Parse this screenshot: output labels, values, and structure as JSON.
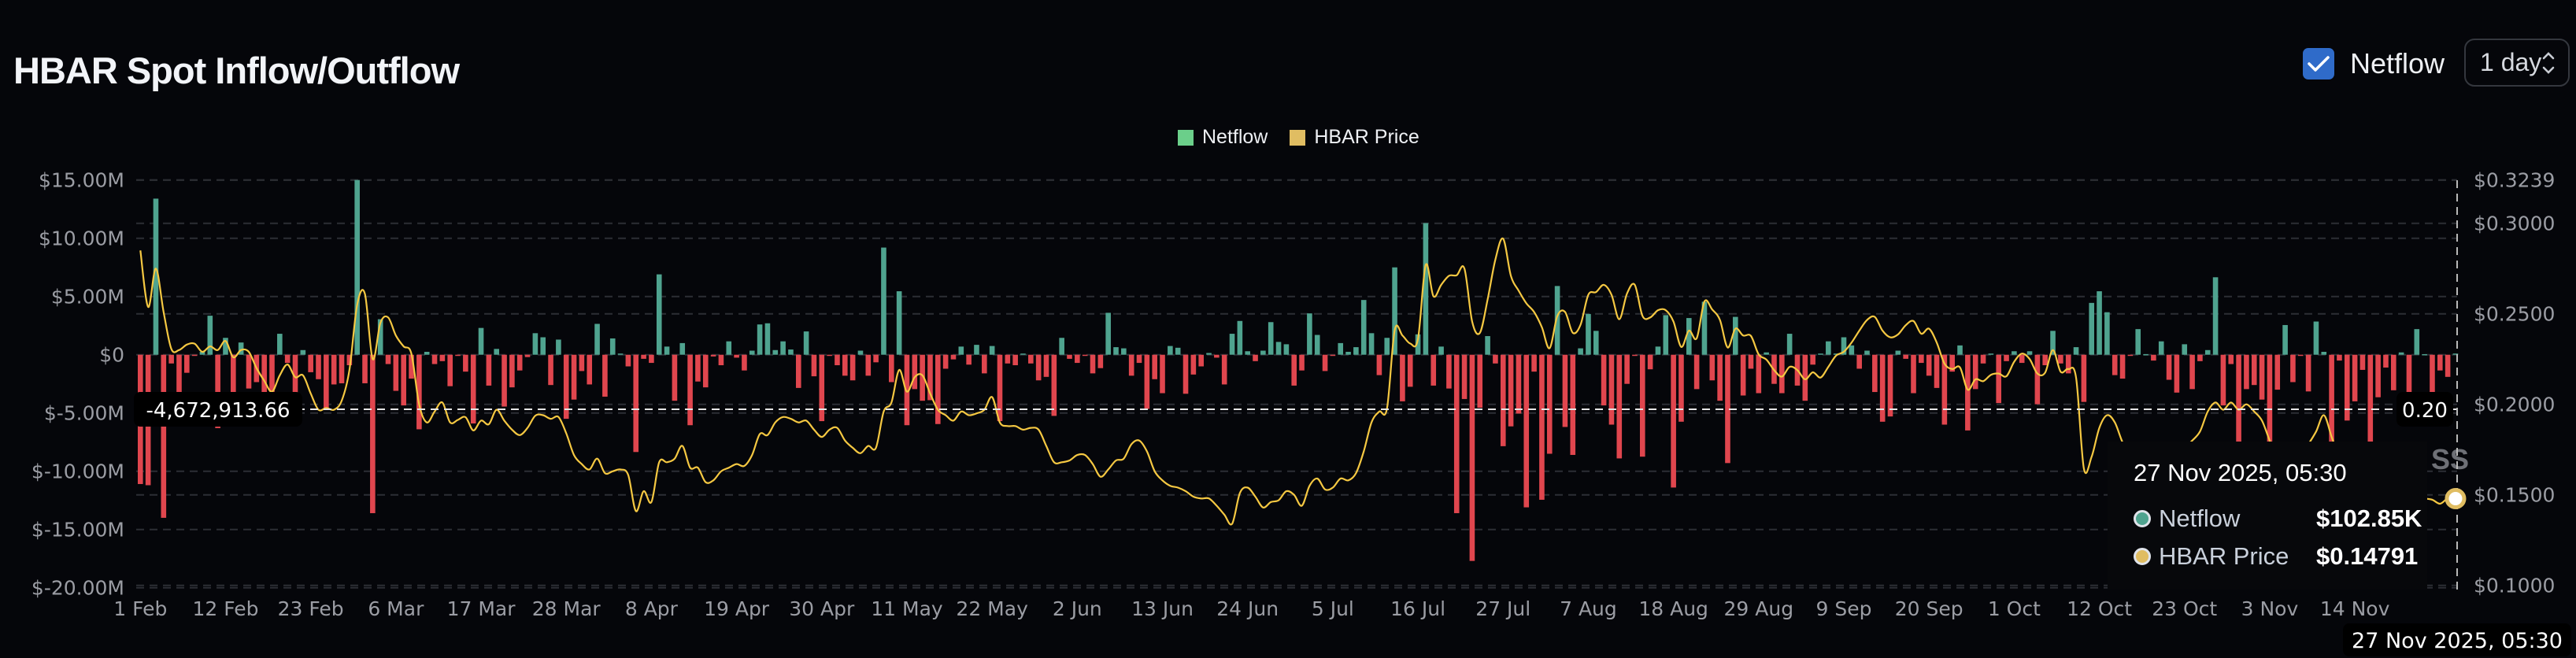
{
  "header": {
    "title": "HBAR Spot Inflow/Outflow",
    "toggle_label": "Netflow",
    "toggle_checked": true,
    "interval_value": "1 day",
    "checkbox_color": "#2f6bc9"
  },
  "legend": [
    {
      "label": "Netflow",
      "color": "#6bcf8a"
    },
    {
      "label": "HBAR Price",
      "color": "#e0bd62"
    }
  ],
  "crosshair": {
    "left_label": "-4,672,913.66",
    "right_label": "0.20",
    "bottom_label": "27 Nov 2025, 05:30"
  },
  "tooltip": {
    "date": "27 Nov 2025, 05:30",
    "rows": [
      {
        "label": "Netflow",
        "value": "$102.85K",
        "color": "#4fa38f"
      },
      {
        "label": "HBAR Price",
        "value": "$0.14791",
        "color": "#e0bd62"
      }
    ]
  },
  "watermark_fragment": "SS",
  "chart_data": {
    "type": "bar+line",
    "x_start": "2025-02-01",
    "x_end": "2025-11-27",
    "x_ticks": [
      "1 Feb",
      "12 Feb",
      "23 Feb",
      "6 Mar",
      "17 Mar",
      "28 Mar",
      "8 Apr",
      "19 Apr",
      "30 Apr",
      "11 May",
      "22 May",
      "2 Jun",
      "13 Jun",
      "24 Jun",
      "5 Jul",
      "16 Jul",
      "27 Jul",
      "7 Aug",
      "18 Aug",
      "29 Aug",
      "9 Sep",
      "20 Sep",
      "1 Oct",
      "12 Oct",
      "23 Oct",
      "3 Nov",
      "14 Nov"
    ],
    "y_left": {
      "unit": "USD millions",
      "range": [
        -20,
        15
      ],
      "ticks": [
        15,
        10,
        5,
        0,
        -5,
        -10,
        -15,
        -20
      ],
      "tick_labels": [
        "$15.00M",
        "$10.00M",
        "$5.00M",
        "$0",
        "$-5.00M",
        "$-10.00M",
        "$-15.00M",
        "$-20.00M"
      ]
    },
    "y_right": {
      "unit": "USD",
      "range": [
        0.1,
        0.3239
      ],
      "ticks": [
        0.3239,
        0.3,
        0.25,
        0.2,
        0.15,
        0.1
      ],
      "tick_labels": [
        "$0.3239",
        "$0.3000",
        "$0.2500",
        "$0.2000",
        "$0.1500",
        "$0.1000"
      ]
    },
    "grid": true,
    "legend_position": "top-center",
    "colors": {
      "positive": "#4fa38f",
      "negative": "#e0464e",
      "price": "#f5c842"
    },
    "series": [
      {
        "name": "Netflow",
        "type": "bar",
        "axis": "left",
        "values": [
          -11.1,
          -11.2,
          13.4,
          -14.0,
          -0.75,
          -4.1,
          -1.55,
          -0.1,
          0.25,
          3.35,
          -6.3,
          1.45,
          -4.25,
          1.05,
          -2.9,
          -2.35,
          -5.25,
          -5.4,
          1.8,
          -0.7,
          -4.7,
          0.4,
          -1.5,
          -2.1,
          -4.6,
          -2.55,
          -2.45,
          -0.9,
          15.0,
          -2.45,
          -13.6,
          3.05,
          -0.8,
          -3.1,
          -4.35,
          -2.05,
          -6.4,
          0.25,
          -0.8,
          -0.55,
          -2.7,
          -0.1,
          -1.45,
          -5.9,
          2.3,
          -2.65,
          0.5,
          -4.45,
          -2.8,
          -1.35,
          -0.2,
          1.85,
          1.5,
          -2.6,
          1.3,
          -5.5,
          -3.85,
          -1.4,
          -2.55,
          2.65,
          -3.6,
          1.4,
          0.1,
          -1.0,
          -8.35,
          -0.35,
          -0.7,
          6.9,
          0.7,
          -3.95,
          1.0,
          -6.05,
          -2.3,
          -2.8,
          -0.15,
          -0.9,
          1.15,
          -0.25,
          -1.35,
          0.35,
          2.6,
          2.7,
          0.4,
          1.15,
          0.45,
          -2.85,
          2.0,
          -1.85,
          -5.7,
          -0.05,
          -0.9,
          -1.8,
          -2.2,
          0.35,
          -1.8,
          -0.65,
          9.2,
          -2.35,
          5.45,
          -6.05,
          -2.95,
          -3.95,
          -3.9,
          -5.95,
          -1.2,
          -0.4,
          0.7,
          -0.85,
          0.85,
          -1.6,
          0.75,
          -5.7,
          -0.75,
          -0.9,
          0.1,
          -0.75,
          -2.2,
          -1.9,
          -5.25,
          1.45,
          -0.35,
          -0.7,
          -0.05,
          -1.6,
          -1.15,
          3.6,
          0.65,
          0.55,
          -1.8,
          -0.7,
          -4.65,
          -2.1,
          -3.3,
          0.75,
          0.6,
          -3.35,
          -1.7,
          -1.0,
          0.15,
          -0.25,
          -2.55,
          1.8,
          2.9,
          0.3,
          -0.55,
          0.35,
          2.8,
          1.1,
          0.9,
          -2.65,
          -1.35,
          3.55,
          1.7,
          -1.4,
          -0.05,
          1.0,
          0.25,
          0.65,
          4.7,
          1.85,
          -1.75,
          1.45,
          7.5,
          -4.0,
          -2.75,
          1.75,
          11.3,
          -2.65,
          0.7,
          -2.9,
          -13.6,
          -3.8,
          -17.7,
          -4.55,
          1.6,
          -0.75,
          -7.85,
          -6.15,
          -5.05,
          -13.1,
          -1.45,
          -12.45,
          -8.5,
          5.9,
          -6.2,
          -8.6,
          0.55,
          3.5,
          2.05,
          -4.35,
          -6.0,
          -8.9,
          -2.5,
          -0.1,
          -8.75,
          -1.25,
          0.7,
          3.4,
          -11.4,
          -5.75,
          3.15,
          -2.95,
          4.55,
          -2.2,
          -3.95,
          -9.3,
          3.25,
          -3.5,
          -1.2,
          -3.3,
          0.2,
          -2.5,
          -3.3,
          1.8,
          -2.65,
          -3.95,
          -0.85,
          0.1,
          1.15,
          0.1,
          1.5,
          0.8,
          -1.2,
          0.35,
          -3.2,
          -5.75,
          -5.3,
          0.35,
          -0.35,
          -3.3,
          -0.7,
          -1.8,
          -2.85,
          -6.0,
          -1.45,
          0.8,
          -6.5,
          -2.95,
          -0.75,
          0.1,
          -4.15,
          -0.55,
          0.3,
          -0.7,
          0.3,
          -4.25,
          -0.9,
          2.05,
          -0.75,
          -1.6,
          0.65,
          -4.05,
          4.45,
          5.45,
          3.65,
          -1.75,
          -2.05,
          -0.05,
          2.2,
          0.05,
          -0.5,
          1.15,
          -2.15,
          -3.25,
          0.9,
          -2.95,
          -0.55,
          0.4,
          6.65,
          -4.35,
          -0.8,
          -9.0,
          -2.95,
          -2.6,
          -3.85,
          -8.0,
          -3.0,
          2.55,
          -2.35,
          -0.05,
          -3.15,
          2.85,
          0.25,
          -9.5,
          -0.5,
          -5.65,
          -4.0,
          -1.3,
          -8.5,
          -3.65,
          -1.1,
          -3.05,
          0.2,
          -3.55,
          2.2,
          0.05,
          -4.95,
          -1.35,
          -1.9,
          0.10285
        ]
      },
      {
        "name": "HBAR Price",
        "type": "line",
        "axis": "right",
        "values": [
          0.285,
          0.2538,
          0.275,
          0.251,
          0.2306,
          0.23,
          0.233,
          0.2335,
          0.229,
          0.232,
          0.23,
          0.235,
          0.226,
          0.23,
          0.229,
          0.22,
          0.213,
          0.207,
          0.216,
          0.222,
          0.215,
          0.216,
          0.206,
          0.197,
          0.198,
          0.197,
          0.202,
          0.219,
          0.255,
          0.261,
          0.225,
          0.245,
          0.248,
          0.238,
          0.232,
          0.228,
          0.2,
          0.19,
          0.196,
          0.201,
          0.19,
          0.1914,
          0.1929,
          0.1856,
          0.191,
          0.189,
          0.197,
          0.191,
          0.186,
          0.183,
          0.187,
          0.1937,
          0.194,
          0.192,
          0.193,
          0.184,
          0.172,
          0.167,
          0.164,
          0.17,
          0.162,
          0.163,
          0.164,
          0.161,
          0.141,
          0.152,
          0.146,
          0.168,
          0.168,
          0.17,
          0.177,
          0.165,
          0.165,
          0.157,
          0.158,
          0.163,
          0.165,
          0.167,
          0.166,
          0.172,
          0.1836,
          0.183,
          0.19,
          0.193,
          0.192,
          0.19,
          0.191,
          0.186,
          0.182,
          0.186,
          0.187,
          0.18,
          0.176,
          0.173,
          0.177,
          0.176,
          0.196,
          0.201,
          0.219,
          0.207,
          0.215,
          0.216,
          0.206,
          0.197,
          0.194,
          0.191,
          0.196,
          0.194,
          0.195,
          0.197,
          0.204,
          0.19,
          0.188,
          0.188,
          0.186,
          0.187,
          0.186,
          0.177,
          0.168,
          0.168,
          0.169,
          0.172,
          0.172,
          0.167,
          0.16,
          0.164,
          0.169,
          0.17,
          0.178,
          0.18,
          0.174,
          0.163,
          0.158,
          0.155,
          0.154,
          0.152,
          0.149,
          0.148,
          0.148,
          0.144,
          0.139,
          0.134,
          0.151,
          0.154,
          0.149,
          0.143,
          0.146,
          0.147,
          0.152,
          0.15,
          0.144,
          0.155,
          0.159,
          0.153,
          0.154,
          0.159,
          0.158,
          0.162,
          0.174,
          0.19,
          0.196,
          0.1977,
          0.241,
          0.238,
          0.2336,
          0.236,
          0.277,
          0.2597,
          0.266,
          0.271,
          0.2713,
          0.275,
          0.2457,
          0.2395,
          0.258,
          0.28,
          0.2915,
          0.271,
          0.2628,
          0.2558,
          0.251,
          0.2426,
          0.231,
          0.2488,
          0.251,
          0.2395,
          0.244,
          0.2605,
          0.262,
          0.266,
          0.2605,
          0.247,
          0.2612,
          0.266,
          0.2488,
          0.248,
          0.252,
          0.252,
          0.2457,
          0.2317,
          0.2407,
          0.2365,
          0.2568,
          0.2524,
          0.2466,
          0.2314,
          0.2418,
          0.238,
          0.2378,
          0.2276,
          0.2247,
          0.2189,
          0.2153,
          0.2207,
          0.2189,
          0.2138,
          0.2177,
          0.2148,
          0.2207,
          0.2269,
          0.229,
          0.2341,
          0.2407,
          0.2466,
          0.2483,
          0.2407,
          0.237,
          0.2386,
          0.2437,
          0.246,
          0.239,
          0.2418,
          0.2341,
          0.2225,
          0.2195,
          0.2204,
          0.2081,
          0.2138,
          0.2128,
          0.2163,
          0.217,
          0.2155,
          0.2235,
          0.228,
          0.225,
          0.217,
          0.2175,
          0.23,
          0.218,
          0.2195,
          0.2146,
          0.1646,
          0.171,
          0.187,
          0.194,
          0.19,
          0.179,
          0.172,
          0.168,
          0.165,
          0.165,
          0.167,
          0.17,
          0.172,
          0.176,
          0.18,
          0.185,
          0.196,
          0.201,
          0.197,
          0.201,
          0.197,
          0.2,
          0.196,
          0.191,
          0.18,
          0.17,
          0.165,
          0.168,
          0.172,
          0.178,
          0.185,
          0.194,
          0.182,
          0.17,
          0.162,
          0.158,
          0.155,
          0.152,
          0.15,
          0.15,
          0.151,
          0.15,
          0.148,
          0.149,
          0.148,
          0.1473,
          0.1451,
          0.148,
          0.14791
        ]
      }
    ]
  }
}
